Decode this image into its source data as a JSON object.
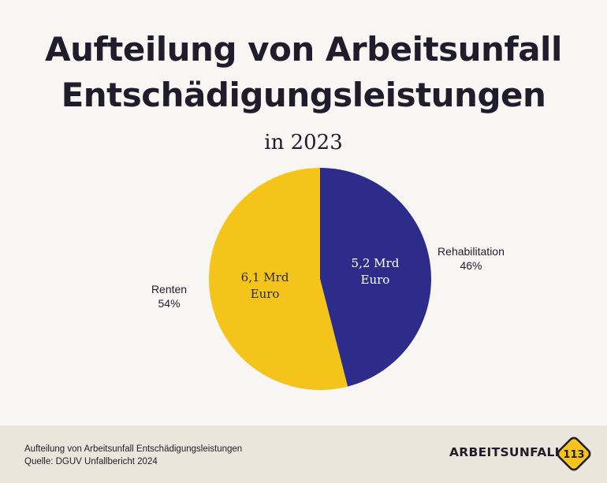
{
  "page": {
    "title_line1": "Aufteilung von Arbeitsunfall",
    "title_line2": "Entschädigungsleistungen",
    "subtitle": "in 2023"
  },
  "chart_data": {
    "type": "pie",
    "title": "Aufteilung von Arbeitsunfall Entschädigungsleistungen",
    "subtitle": "in 2023",
    "slices": [
      {
        "name": "Rehabilitation",
        "percent": 46,
        "percent_label": "46%",
        "value": 5.2,
        "value_label_line1": "5,2 Mrd",
        "value_label_line2": "Euro",
        "color": "#2e2c8a"
      },
      {
        "name": "Renten",
        "percent": 54,
        "percent_label": "54%",
        "value": 6.1,
        "value_label_line1": "6,1 Mrd",
        "value_label_line2": "Euro",
        "color": "#f5c41a"
      }
    ]
  },
  "footer": {
    "caption": "Aufteilung von Arbeitsunfall Entschädigungsleistungen",
    "source": "Quelle: DGUV Unfallbericht 2024",
    "brand_name": "ARBEITSUNFALL",
    "brand_number": "113",
    "brand_color": "#f5c41a"
  }
}
